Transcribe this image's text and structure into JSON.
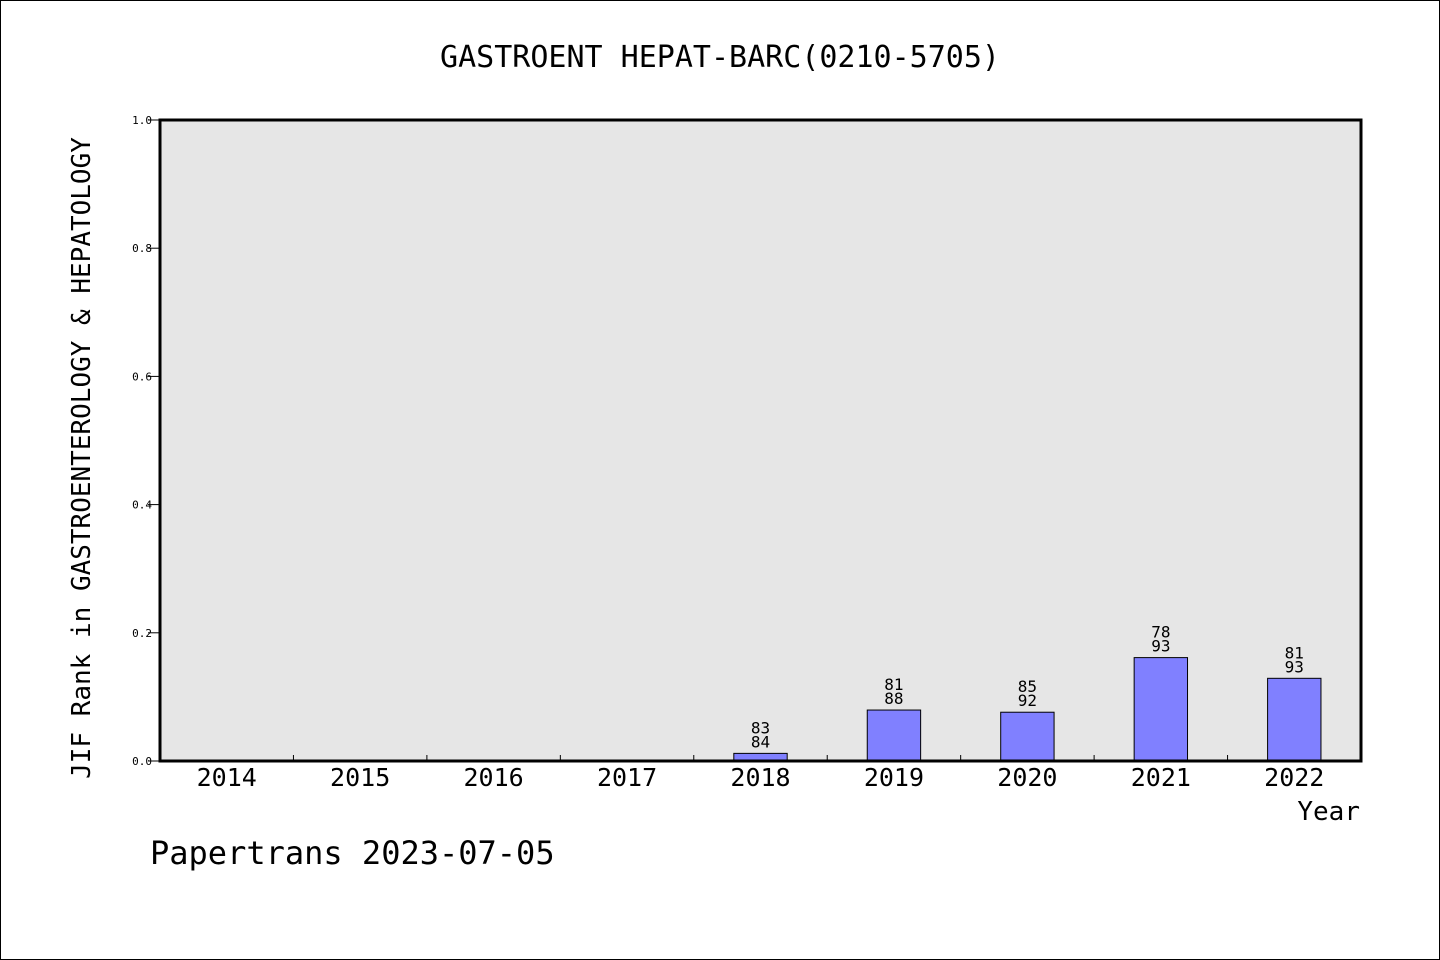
{
  "chart_data": {
    "type": "bar",
    "title": "GASTROENT HEPAT-BARC(0210-5705)",
    "xlabel": "Year",
    "ylabel": "JIF Rank in GASTROENTEROLOGY & HEPATOLOGY",
    "ylim": [
      0,
      1.0
    ],
    "yticks": [
      "0.0",
      "0.2",
      "0.4",
      "0.6",
      "0.8",
      "1.0"
    ],
    "grid": false,
    "categories": [
      "2014",
      "2015",
      "2016",
      "2017",
      "2018",
      "2019",
      "2020",
      "2021",
      "2022"
    ],
    "values": [
      null,
      null,
      null,
      null,
      0.0119,
      0.0795,
      0.0761,
      0.1613,
      0.129
    ],
    "ranks": [
      null,
      null,
      null,
      null,
      "83",
      "81",
      "85",
      "78",
      "81"
    ],
    "totals": [
      null,
      null,
      null,
      null,
      "84",
      "88",
      "92",
      "93",
      "93"
    ],
    "bar_color": "#8080ff",
    "plot_background": "#e6e6e6"
  },
  "footer": "Papertrans 2023-07-05"
}
